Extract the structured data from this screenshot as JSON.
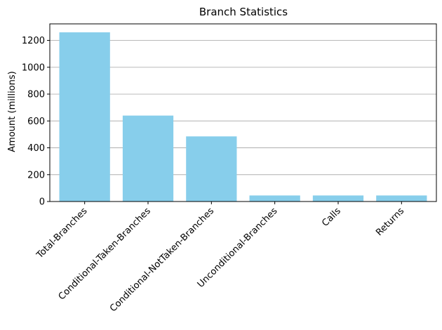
{
  "chart_data": {
    "type": "bar",
    "title": "Branch Statistics",
    "xlabel": "",
    "ylabel": "Amount (millions)",
    "categories": [
      "Total-Branches",
      "Conditional-Taken-Branches",
      "Conditional-NotTaken-Branches",
      "Unconditional-Branches",
      "Calls",
      "Returns"
    ],
    "values": [
      1260,
      640,
      485,
      45,
      45,
      45
    ],
    "ylim": [
      0,
      1323
    ],
    "yticks": [
      0,
      200,
      400,
      600,
      800,
      1000,
      1200
    ],
    "grid": "y-axis",
    "bar_color": "#87ceeb",
    "x_tick_rotation": 45
  }
}
